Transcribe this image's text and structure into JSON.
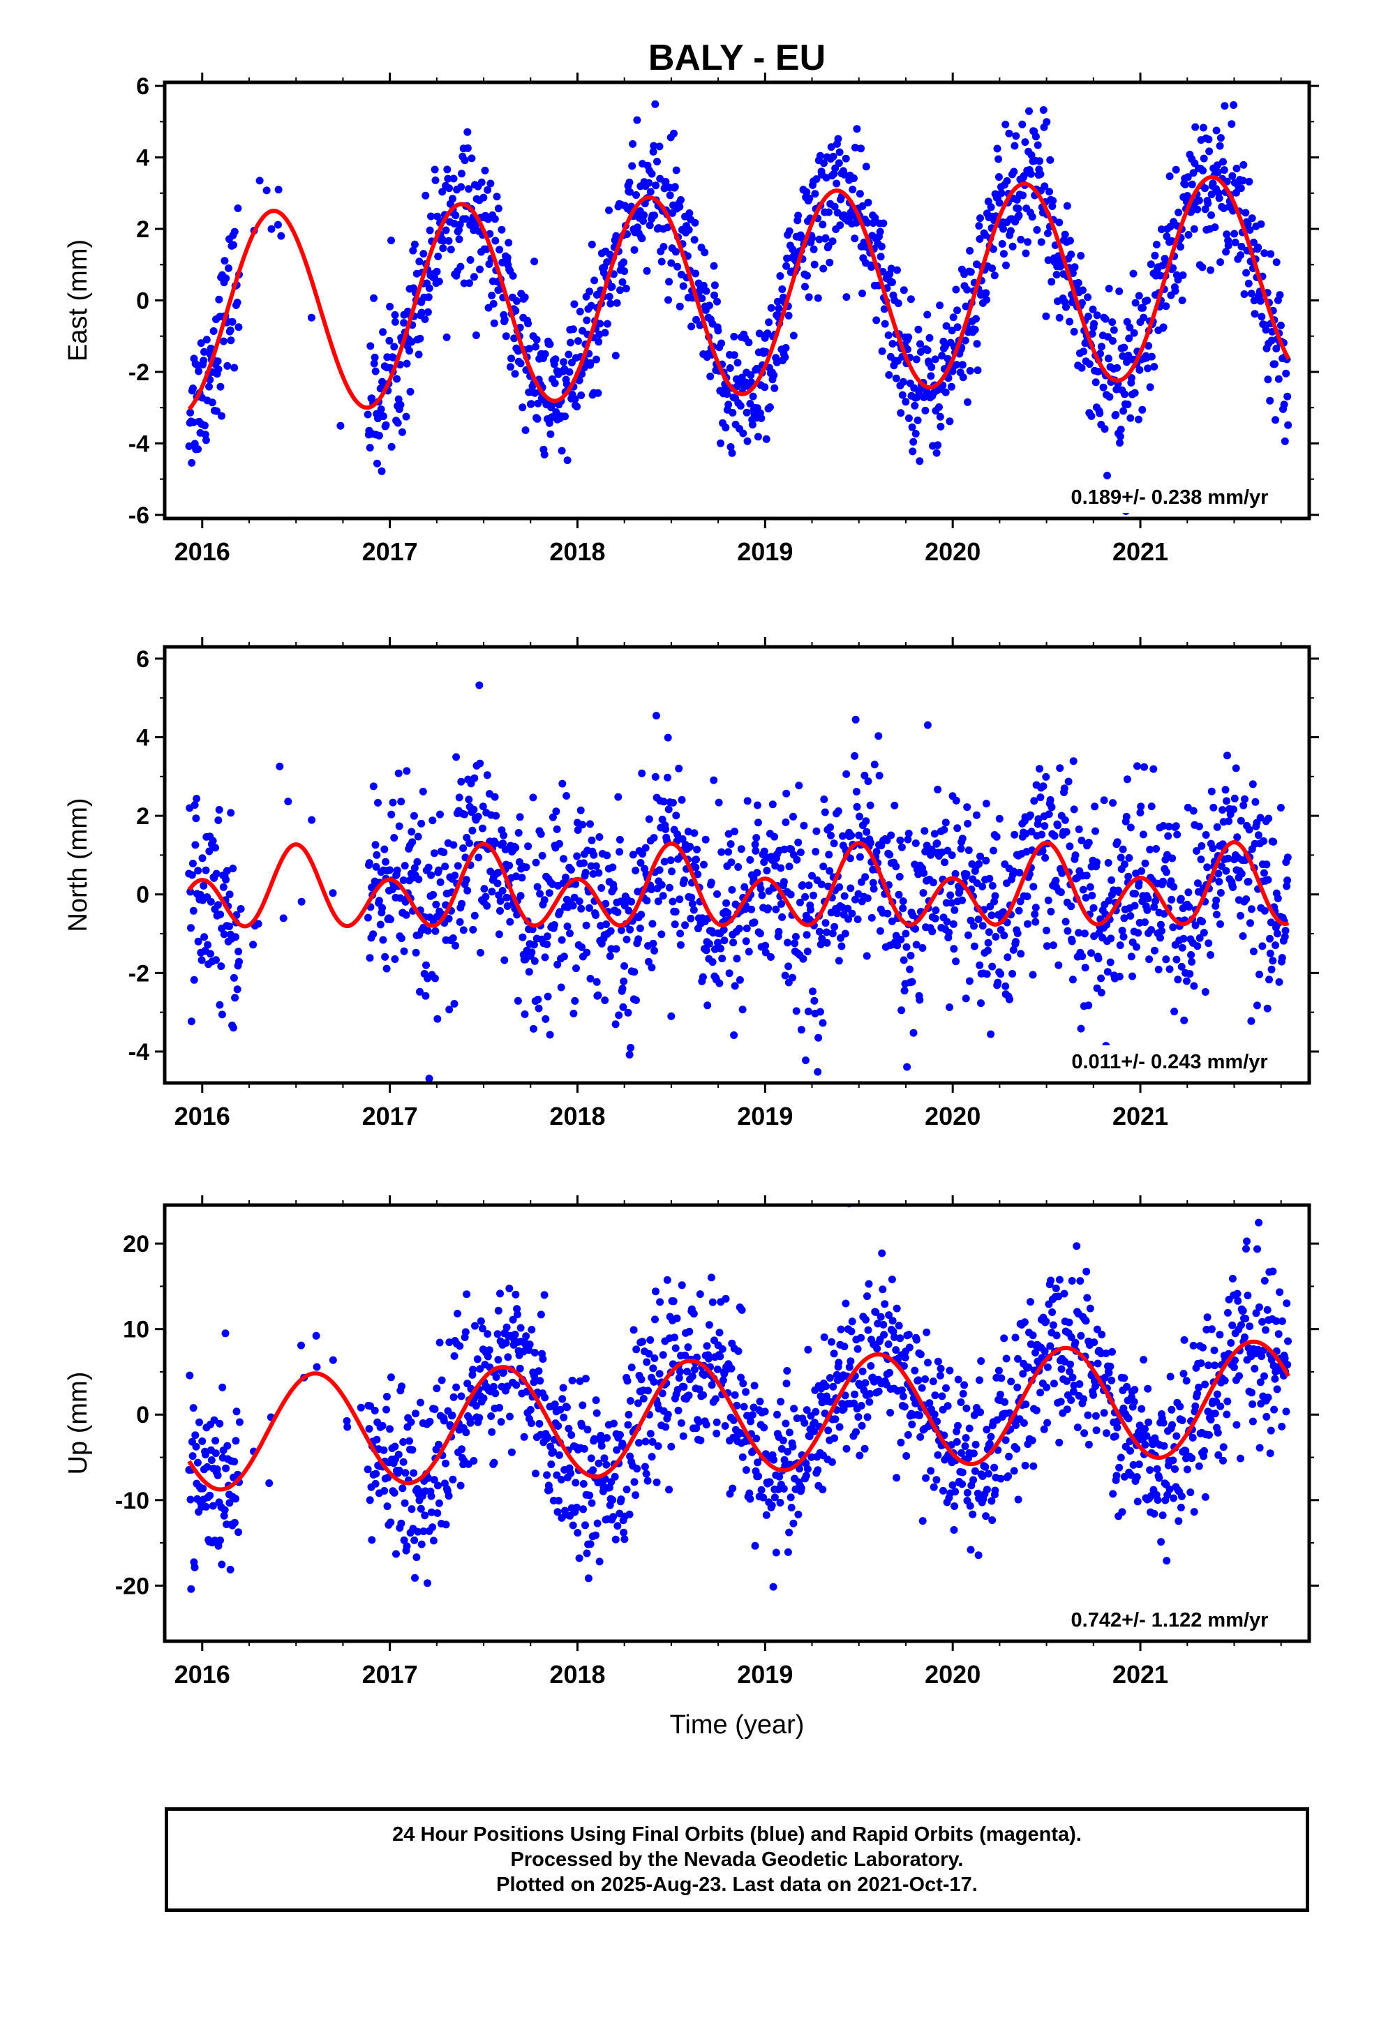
{
  "title": "BALY - EU",
  "xlabel": "Time (year)",
  "footer": {
    "line1": "24 Hour Positions Using Final Orbits (blue) and Rapid Orbits (magenta).",
    "line2": "Processed by the Nevada Geodetic Laboratory.",
    "line3": "Plotted on 2025-Aug-23. Last data on 2021-Oct-17."
  },
  "colors": {
    "points": "#0000ff",
    "fit": "#ff0000",
    "frame": "#000000"
  },
  "chart_data": [
    {
      "type": "scatter",
      "ylabel": "East (mm)",
      "xlim": [
        2015.8,
        2021.9
      ],
      "ylim": [
        -6.1,
        6.1
      ],
      "yticks": [
        -6,
        -4,
        -2,
        0,
        2,
        4,
        6
      ],
      "xticks": [
        2016,
        2017,
        2018,
        2019,
        2020,
        2021
      ],
      "rate_label": "0.189+/- 0.238 mm/yr",
      "data_range": [
        2015.93,
        2021.79
      ],
      "gap": [
        2016.2,
        2016.88
      ],
      "fit": {
        "mean": 0.2,
        "trend": 0.189,
        "annual_amp": 2.8,
        "annual_peak": 0.38,
        "semi_amp": 0.0,
        "semi_peak": 0.0
      },
      "noise_sd": 1.0,
      "points_per_year": 300
    },
    {
      "type": "scatter",
      "ylabel": "North (mm)",
      "xlim": [
        2015.8,
        2021.9
      ],
      "ylim": [
        -4.8,
        6.3
      ],
      "yticks": [
        -4,
        -2,
        0,
        2,
        4,
        6
      ],
      "xticks": [
        2016,
        2017,
        2018,
        2019,
        2020,
        2021
      ],
      "rate_label": "0.011+/- 0.243 mm/yr",
      "data_range": [
        2015.93,
        2021.79
      ],
      "gap": [
        2016.2,
        2016.88
      ],
      "fit": {
        "mean": 0.05,
        "trend": 0.011,
        "annual_amp": 0.45,
        "annual_peak": 0.5,
        "semi_amp": 0.8,
        "semi_peak": 0.5
      },
      "noise_sd": 1.3,
      "points_per_year": 300
    },
    {
      "type": "scatter",
      "ylabel": "Up (mm)",
      "xlim": [
        2015.8,
        2021.9
      ],
      "ylim": [
        -26.5,
        24.5
      ],
      "yticks": [
        -20,
        -10,
        0,
        10,
        20
      ],
      "xticks": [
        2016,
        2017,
        2018,
        2019,
        2020,
        2021
      ],
      "rate_label": "0.742+/- 1.122 mm/yr",
      "data_range": [
        2015.93,
        2021.79
      ],
      "gap": [
        2016.2,
        2016.88
      ],
      "fit": {
        "mean": 0.0,
        "trend": 0.742,
        "annual_amp": 6.6,
        "annual_peak": 0.6,
        "semi_amp": 0.0,
        "semi_peak": 0.0
      },
      "noise_sd": 4.8,
      "points_per_year": 300
    }
  ]
}
